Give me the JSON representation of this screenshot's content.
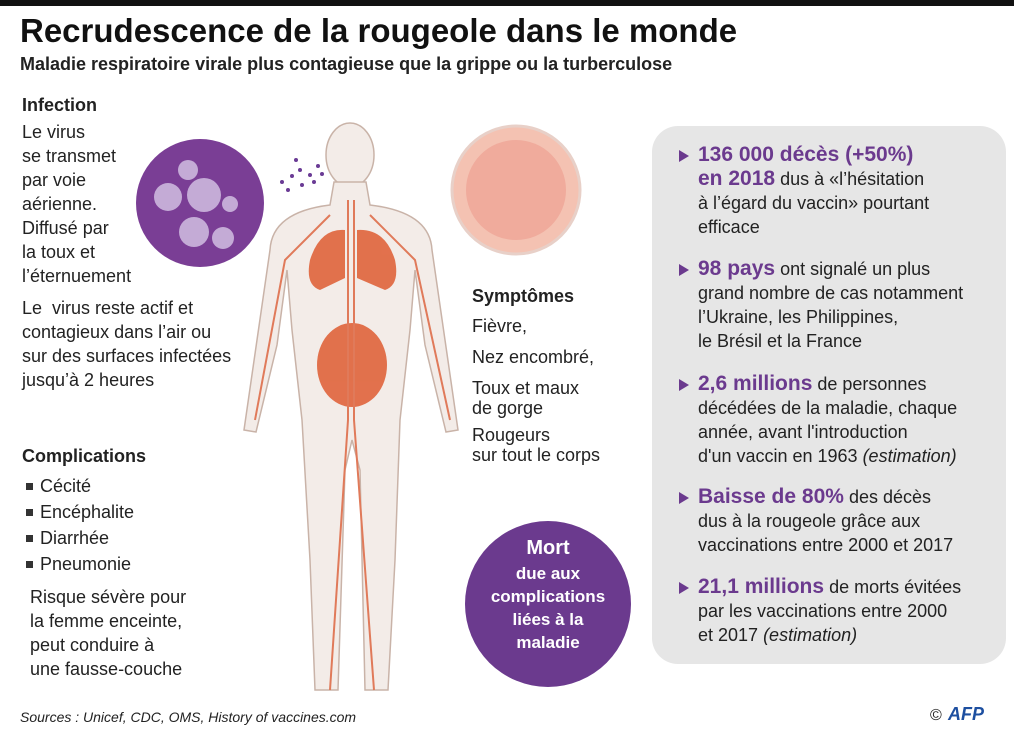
{
  "header": {
    "title": "Recrudescence de la rougeole dans le monde",
    "subtitle": "Maladie respiratoire virale plus contagieuse que la grippe ou la turberculose"
  },
  "infection": {
    "heading": "Infection",
    "lines": [
      "Le virus",
      "se transmet",
      "par voie",
      "aérienne.",
      "Diffusé par",
      "la toux et",
      "l’éternuement"
    ],
    "lines2": [
      "Le  virus reste actif et",
      "contagieux dans l’air ou",
      "sur des surfaces infectées",
      "jusqu’à 2 heures"
    ]
  },
  "complications": {
    "heading": "Complications",
    "items": [
      "Cécité",
      "Encéphalite",
      "Diarrhée",
      "Pneumonie"
    ],
    "note": [
      "Risque sévère pour",
      "la femme enceinte,",
      "peut conduire à",
      "une fausse-couche"
    ]
  },
  "symptoms": {
    "heading": "Symptômes",
    "items": [
      [
        "Fièvre,"
      ],
      [
        "Nez encombré,"
      ],
      [
        "Toux et maux",
        "de gorge"
      ],
      [
        "Rougeurs",
        "sur tout le corps"
      ]
    ]
  },
  "death": {
    "heading": "Mort",
    "lines": [
      "due aux",
      "complications",
      "liées à la",
      "maladie"
    ]
  },
  "facts": [
    {
      "lines": [
        [
          {
            "text": "136 000 décès (+50%)",
            "bold": true
          }
        ],
        [
          {
            "text": "en 2018",
            "bold": true
          },
          {
            "text": " dus à «l’hésitation"
          }
        ],
        [
          {
            "text": "à l’égard du vaccin» pourtant"
          }
        ],
        [
          {
            "text": "efficace"
          }
        ]
      ]
    },
    {
      "lines": [
        [
          {
            "text": "98 pays",
            "bold": true
          },
          {
            "text": " ont signalé un plus"
          }
        ],
        [
          {
            "text": "grand nombre de cas notamment"
          }
        ],
        [
          {
            "text": "l’Ukraine, les Philippines,"
          }
        ],
        [
          {
            "text": "le Brésil et la France"
          }
        ]
      ]
    },
    {
      "lines": [
        [
          {
            "text": "2,6 millions",
            "bold": true
          },
          {
            "text": " de personnes"
          }
        ],
        [
          {
            "text": "décédées de la maladie, chaque"
          }
        ],
        [
          {
            "text": "année, avant l'introduction"
          }
        ],
        [
          {
            "text": "d'un vaccin en 1963 "
          },
          {
            "text": "(estimation)",
            "italic": true
          }
        ]
      ]
    },
    {
      "lines": [
        [
          {
            "text": "Baisse de 80%",
            "bold": true
          },
          {
            "text": " des décès"
          }
        ],
        [
          {
            "text": "dus à la rougeole grâce aux"
          }
        ],
        [
          {
            "text": "vaccinations entre 2000 et 2017"
          }
        ]
      ]
    },
    {
      "lines": [
        [
          {
            "text": "21,1 millions",
            "bold": true
          },
          {
            "text": " de morts évitées"
          }
        ],
        [
          {
            "text": "par les vaccinations entre 2000"
          }
        ],
        [
          {
            "text": "et 2017 "
          },
          {
            "text": "(estimation)",
            "italic": true
          }
        ]
      ]
    }
  ],
  "footer": {
    "sources": "Sources : Unicef, CDC, OMS, History of vaccines.com",
    "copyright": "©",
    "agency": "AFP"
  }
}
